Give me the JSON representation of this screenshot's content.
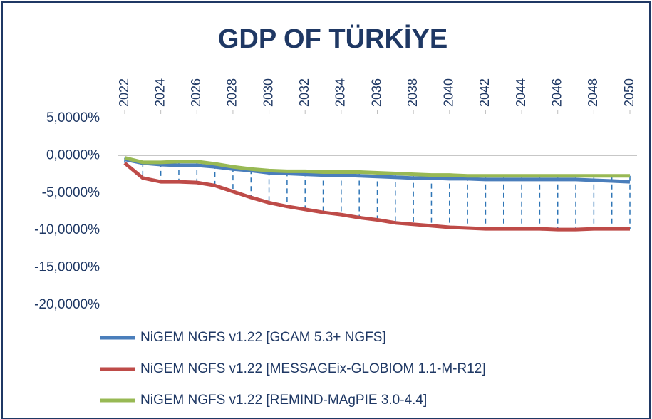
{
  "chart_data": {
    "type": "line",
    "title": "GDP OF TÜRKİYE",
    "x": [
      2022,
      2023,
      2024,
      2025,
      2026,
      2027,
      2028,
      2029,
      2030,
      2031,
      2032,
      2033,
      2034,
      2035,
      2036,
      2037,
      2038,
      2039,
      2040,
      2041,
      2042,
      2043,
      2044,
      2045,
      2046,
      2047,
      2048,
      2049,
      2050
    ],
    "xlim": [
      2022,
      2050
    ],
    "xticks": [
      2022,
      2024,
      2026,
      2028,
      2030,
      2032,
      2034,
      2036,
      2038,
      2040,
      2042,
      2044,
      2046,
      2048,
      2050
    ],
    "ylim": [
      -20,
      5
    ],
    "yticks": [
      {
        "value": 5,
        "label": "5,0000%"
      },
      {
        "value": 0,
        "label": "0,0000%"
      },
      {
        "value": -5,
        "label": "-5,0000%"
      },
      {
        "value": -10,
        "label": "-10,0000%"
      },
      {
        "value": -15,
        "label": "-15,0000%"
      },
      {
        "value": -20,
        "label": "-20,0000%"
      }
    ],
    "grid": false,
    "drop_lines": true,
    "legend": "bottom",
    "series": [
      {
        "name": "NiGEM NGFS v1.22 [GCAM 5.3+ NGFS]",
        "color": "#4a7ebb",
        "values": [
          -0.5,
          -1.0,
          -1.2,
          -1.3,
          -1.3,
          -1.5,
          -1.8,
          -2.0,
          -2.3,
          -2.4,
          -2.5,
          -2.6,
          -2.6,
          -2.7,
          -2.8,
          -2.9,
          -3.0,
          -3.0,
          -3.1,
          -3.1,
          -3.2,
          -3.2,
          -3.2,
          -3.2,
          -3.2,
          -3.2,
          -3.3,
          -3.4,
          -3.5
        ]
      },
      {
        "name": "NiGEM NGFS v1.22 [MESSAGEix-GLOBIOM 1.1-M-R12]",
        "color": "#be4b48",
        "values": [
          -1.0,
          -3.0,
          -3.5,
          -3.5,
          -3.6,
          -4.0,
          -4.8,
          -5.6,
          -6.3,
          -6.8,
          -7.2,
          -7.6,
          -7.9,
          -8.3,
          -8.6,
          -9.0,
          -9.2,
          -9.4,
          -9.6,
          -9.7,
          -9.8,
          -9.8,
          -9.8,
          -9.8,
          -9.9,
          -9.9,
          -9.8,
          -9.8,
          -9.8
        ]
      },
      {
        "name": "NiGEM NGFS v1.22 [REMIND-MAgPIE 3.0-4.4]",
        "color": "#98b954",
        "values": [
          -0.3,
          -0.9,
          -0.9,
          -0.8,
          -0.8,
          -1.1,
          -1.5,
          -1.8,
          -2.0,
          -2.1,
          -2.1,
          -2.2,
          -2.2,
          -2.2,
          -2.3,
          -2.4,
          -2.5,
          -2.6,
          -2.6,
          -2.7,
          -2.7,
          -2.7,
          -2.7,
          -2.7,
          -2.7,
          -2.7,
          -2.7,
          -2.7,
          -2.7
        ]
      }
    ]
  }
}
